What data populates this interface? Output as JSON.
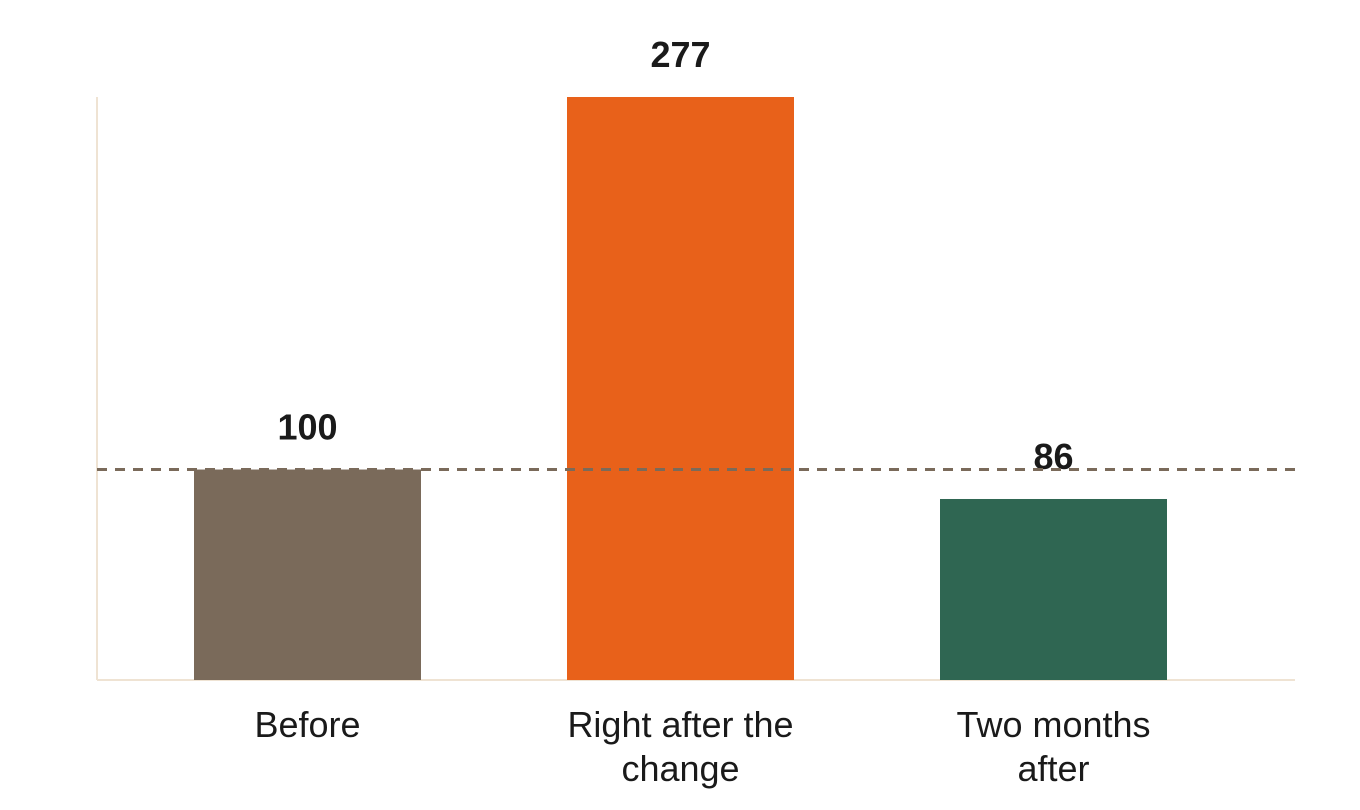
{
  "chart_data": {
    "type": "bar",
    "categories": [
      "Before",
      "Right after the change",
      "Two months after"
    ],
    "values": [
      100,
      277,
      86
    ],
    "colors": [
      "#7a6a5a",
      "#e8611a",
      "#2f6652"
    ],
    "ylim": [
      0,
      277
    ],
    "reference_line": 100,
    "reference_color": "#7a6a5a"
  }
}
